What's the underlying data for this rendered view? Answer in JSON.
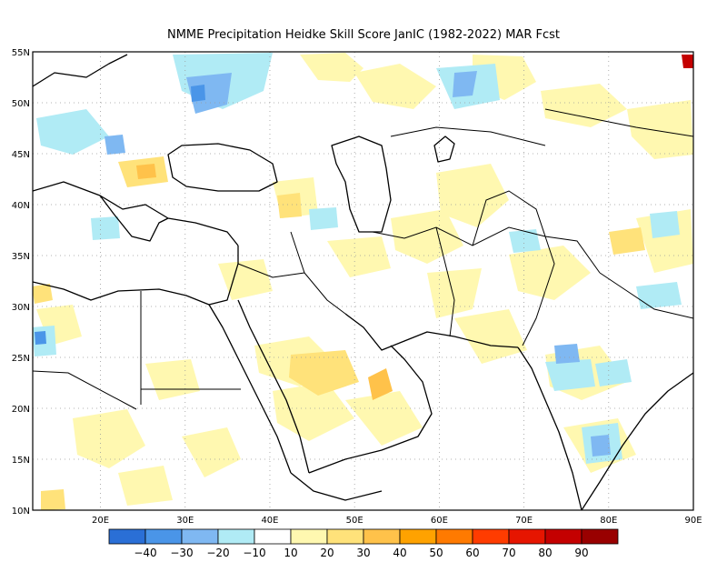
{
  "title": "NMME  Precipitation Heidke Skill Score JanIC (1982-2022) MAR Fcst",
  "map": {
    "lon_range": [
      12,
      90
    ],
    "lat_range": [
      10,
      55
    ],
    "lat_labels": [
      "10N",
      "15N",
      "20N",
      "25N",
      "30N",
      "35N",
      "40N",
      "45N",
      "50N",
      "55N"
    ],
    "lon_labels": [
      "20E",
      "30E",
      "40E",
      "50E",
      "60E",
      "70E",
      "80E",
      "90E"
    ]
  },
  "colorbar": {
    "colors": [
      "#2a6fd6",
      "#4a95e8",
      "#7fb8f2",
      "#b0ebf5",
      "#ffffff",
      "#fff8b0",
      "#ffe27a",
      "#ffc24a",
      "#ffa200",
      "#ff7a00",
      "#ff3c00",
      "#e61500",
      "#c40000",
      "#990000"
    ],
    "labels": [
      "-40",
      "-30",
      "-20",
      "-10",
      "10",
      "20",
      "30",
      "40",
      "50",
      "60",
      "70",
      "80",
      "90"
    ]
  }
}
